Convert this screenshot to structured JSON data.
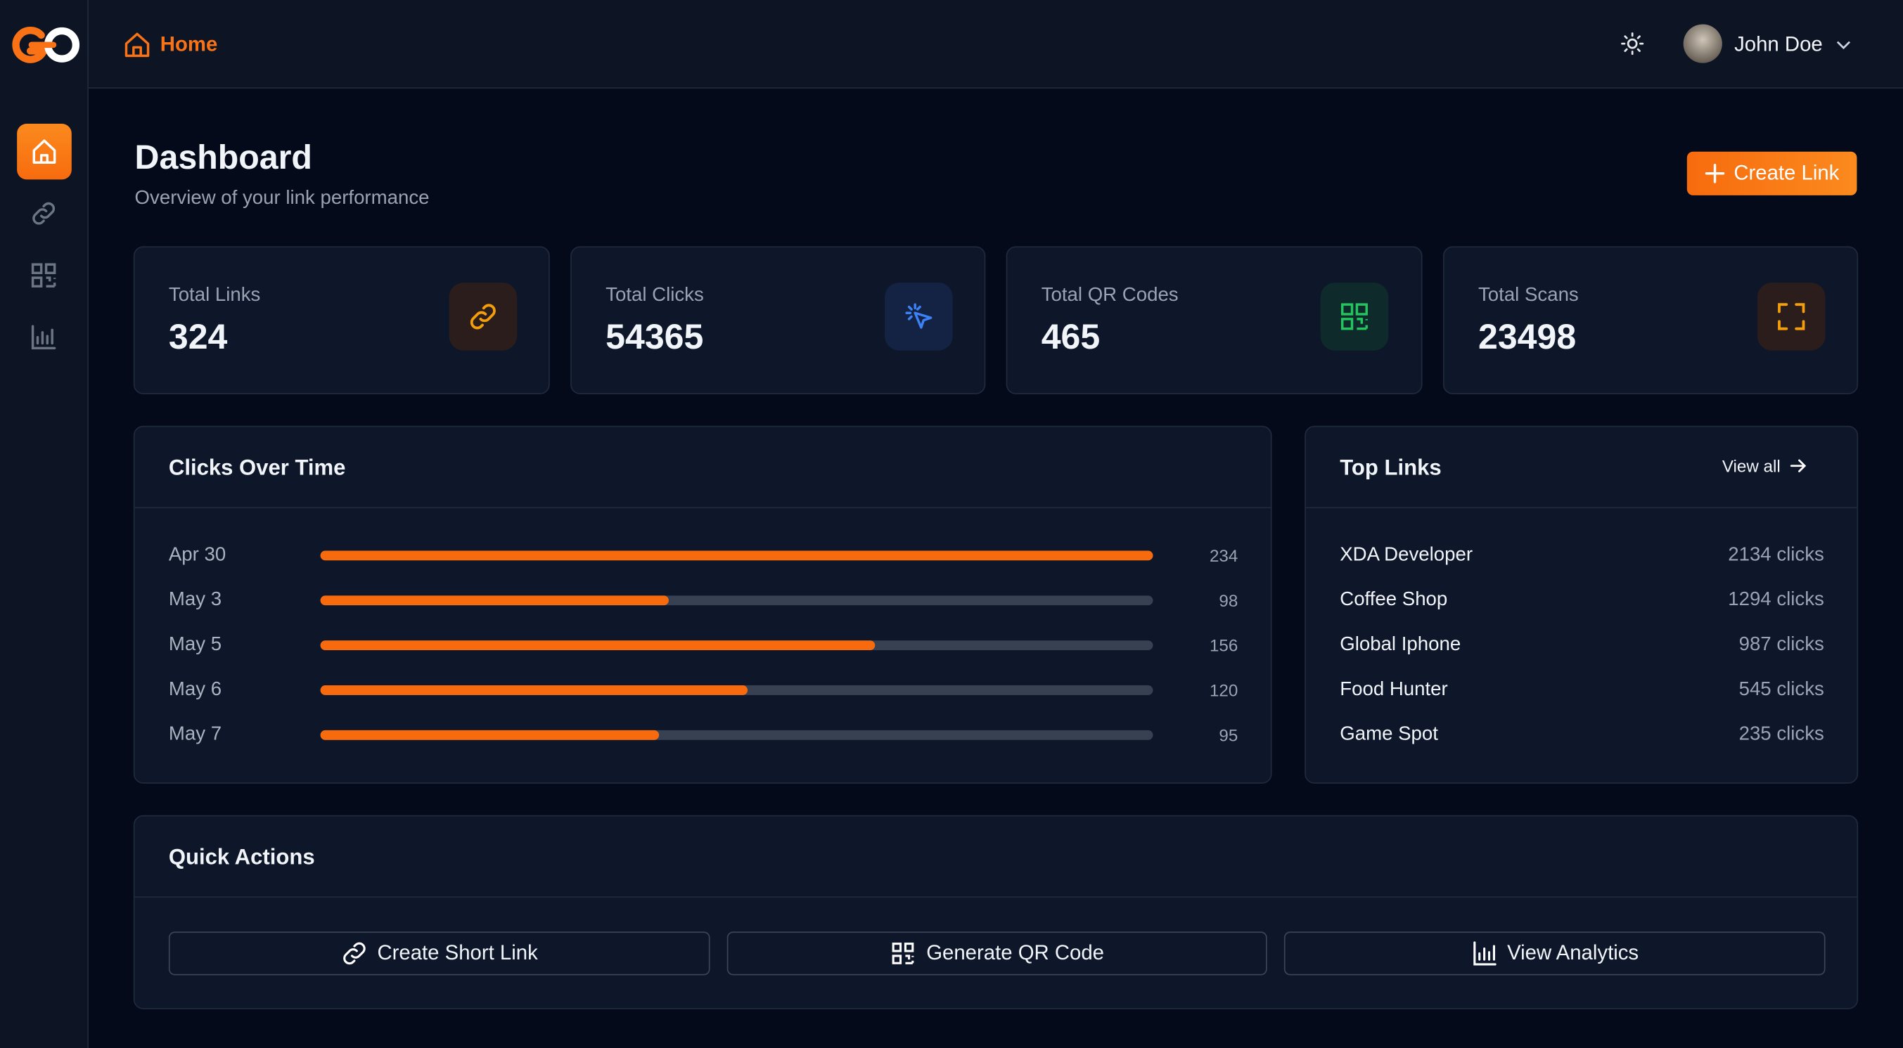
{
  "nav": {
    "breadcrumb": "Home",
    "user_name": "John Doe"
  },
  "header": {
    "title": "Dashboard",
    "subtitle": "Overview of your link performance",
    "action": "Create Link"
  },
  "stats": [
    {
      "label": "Total Links",
      "value": 324
    },
    {
      "label": "Total Clicks",
      "value": 54365
    },
    {
      "label": "Total QR Codes",
      "value": 465
    },
    {
      "label": "Total Scans",
      "value": 23498
    }
  ],
  "clicks_over_time": {
    "title": "Clicks Over Time",
    "categories": [
      "Apr 30",
      "May 3",
      "May 5",
      "May 6",
      "May 7"
    ],
    "values": [
      234,
      98,
      156,
      120,
      95
    ]
  },
  "top_links": {
    "title": "Top Links",
    "action": "View all",
    "links": [
      {
        "name": "XDA Developer",
        "clicks": "2134 clicks"
      },
      {
        "name": "Coffee Shop",
        "clicks": "1294 clicks"
      },
      {
        "name": "Global Iphone",
        "clicks": "987 clicks"
      },
      {
        "name": "Food Hunter",
        "clicks": "545 clicks"
      },
      {
        "name": "Game Spot",
        "clicks": "235 clicks"
      }
    ]
  },
  "quick_actions": {
    "title": "Quick Actions",
    "actions": [
      "Create Short Link",
      "Generate QR Code",
      "View Analytics"
    ]
  }
}
